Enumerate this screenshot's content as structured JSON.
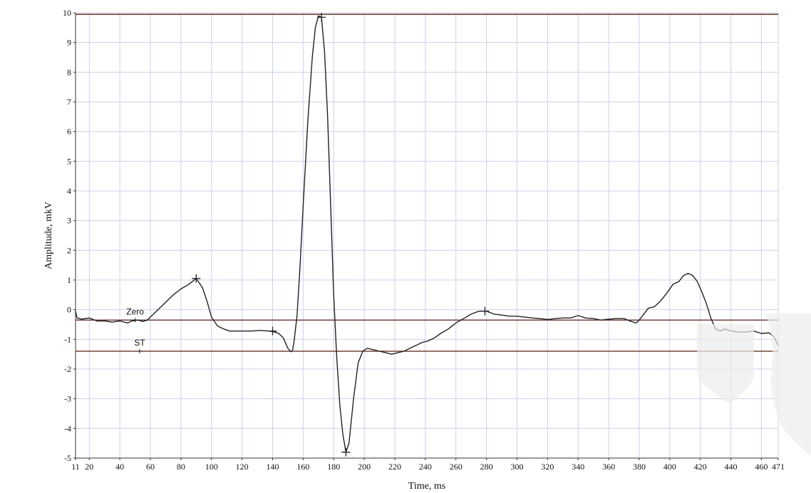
{
  "chart_data": {
    "type": "line",
    "xlabel": "Time, ms",
    "ylabel": "Amplitude, mkV",
    "xlim": [
      11,
      471
    ],
    "ylim": [
      -5,
      10
    ],
    "grid": true,
    "x_ticks": [
      11,
      20,
      40,
      60,
      80,
      100,
      120,
      140,
      160,
      180,
      200,
      220,
      240,
      260,
      280,
      300,
      320,
      340,
      360,
      380,
      400,
      420,
      440,
      460,
      471
    ],
    "x_tick_labels": [
      "11",
      "20",
      "40",
      "60",
      "80",
      "100",
      "120",
      "140",
      "160",
      "180",
      "200",
      "220",
      "240",
      "260",
      "280",
      "300",
      "320",
      "340",
      "360",
      "380",
      "400",
      "420",
      "440",
      "460",
      "471"
    ],
    "y_ticks": [
      -5,
      -4,
      -3,
      -2,
      -1,
      0,
      1,
      2,
      3,
      4,
      5,
      6,
      7,
      8,
      9,
      10
    ],
    "y_tick_labels": [
      "-5",
      "-4",
      "-3",
      "-2",
      "-1",
      "0",
      "1",
      "2",
      "3",
      "4",
      "5",
      "6",
      "7",
      "8",
      "9",
      "10"
    ],
    "series": [
      {
        "color": "#222222",
        "x": [
          11,
          12,
          15,
          20,
          25,
          30,
          35,
          40,
          45,
          48,
          52,
          55,
          58,
          62,
          66,
          70,
          75,
          80,
          85,
          90,
          94,
          97,
          100,
          104,
          108,
          112,
          116,
          120,
          126,
          132,
          138,
          141,
          144,
          147,
          150,
          152,
          153,
          154,
          156,
          158,
          160,
          163,
          166,
          168,
          170,
          172,
          174,
          176,
          178,
          180,
          182,
          184,
          186,
          188,
          190,
          193,
          196,
          199,
          202,
          206,
          210,
          214,
          218,
          222,
          226,
          230,
          234,
          238,
          242,
          246,
          250,
          255,
          260,
          265,
          270,
          275,
          280,
          285,
          290,
          295,
          300,
          305,
          310,
          315,
          320,
          325,
          330,
          335,
          340,
          345,
          350,
          355,
          360,
          365,
          370,
          375,
          378,
          380,
          383,
          386,
          390,
          394,
          398,
          402,
          406,
          409,
          412,
          415,
          418,
          421,
          424,
          427,
          430,
          433,
          436,
          440,
          445,
          450,
          455,
          460,
          465,
          468,
          471
        ],
        "y": [
          -0.05,
          -0.28,
          -0.32,
          -0.28,
          -0.38,
          -0.38,
          -0.42,
          -0.38,
          -0.45,
          -0.38,
          -0.35,
          -0.4,
          -0.35,
          -0.15,
          0.05,
          0.25,
          0.5,
          0.7,
          0.85,
          1.05,
          0.75,
          0.3,
          -0.25,
          -0.55,
          -0.65,
          -0.72,
          -0.72,
          -0.72,
          -0.72,
          -0.7,
          -0.72,
          -0.75,
          -0.8,
          -0.95,
          -1.3,
          -1.42,
          -1.38,
          -1.1,
          -0.2,
          1.5,
          3.5,
          6.3,
          8.5,
          9.5,
          9.9,
          9.85,
          8.7,
          6.5,
          3.5,
          0.5,
          -1.6,
          -3.2,
          -4.2,
          -4.8,
          -4.5,
          -3.0,
          -1.8,
          -1.4,
          -1.3,
          -1.35,
          -1.4,
          -1.45,
          -1.5,
          -1.45,
          -1.4,
          -1.3,
          -1.2,
          -1.1,
          -1.05,
          -0.95,
          -0.8,
          -0.65,
          -0.45,
          -0.3,
          -0.15,
          -0.05,
          -0.05,
          -0.15,
          -0.18,
          -0.22,
          -0.22,
          -0.25,
          -0.28,
          -0.3,
          -0.33,
          -0.3,
          -0.28,
          -0.28,
          -0.2,
          -0.28,
          -0.3,
          -0.35,
          -0.32,
          -0.3,
          -0.3,
          -0.4,
          -0.45,
          -0.35,
          -0.15,
          0.05,
          0.1,
          0.3,
          0.55,
          0.85,
          0.95,
          1.15,
          1.22,
          1.15,
          0.95,
          0.6,
          0.2,
          -0.3,
          -0.65,
          -0.72,
          -0.65,
          -0.72,
          -0.75,
          -0.75,
          -0.72,
          -0.8,
          -0.78,
          -0.9,
          -1.2
        ]
      }
    ],
    "markers": [
      {
        "x": 90,
        "y": 1.05
      },
      {
        "x": 140,
        "y": -0.72
      },
      {
        "x": 172,
        "y": 9.85
      },
      {
        "x": 188,
        "y": -4.8
      },
      {
        "x": 279,
        "y": -0.05
      }
    ],
    "hlines": [
      {
        "y": 9.95
      },
      {
        "y": -0.35
      },
      {
        "y": -1.4
      }
    ],
    "annotations": [
      {
        "text": "Zero",
        "x": 50,
        "y": -0.35
      },
      {
        "text": "ST",
        "x": 53,
        "y": -1.4
      }
    ]
  }
}
